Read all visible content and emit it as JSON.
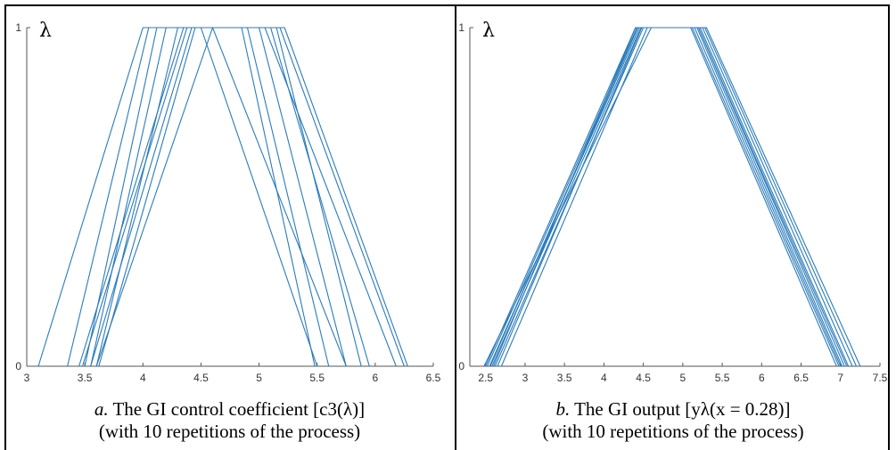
{
  "panels": [
    {
      "caption_letter": "a.",
      "caption_text": "The GI control coefficient",
      "caption_math": "[c3(λ)]",
      "caption_line2": "(with 10 repetitions of the process)"
    },
    {
      "caption_letter": "b.",
      "caption_text": "The GI output",
      "caption_math": "[yλ(x = 0.28)]",
      "caption_line2": "(with 10 repetitions of the process)"
    }
  ],
  "chart_data": [
    {
      "type": "line",
      "ylabel": "λ",
      "xlim": [
        3,
        6.5
      ],
      "ylim": [
        0,
        1
      ],
      "xticks": [
        "3",
        "3.5",
        "4",
        "4.5",
        "5",
        "5.5",
        "6",
        "6.5"
      ],
      "yticks": [
        "0",
        "1"
      ],
      "color": "#2b7bba",
      "grid": false,
      "series": [
        {
          "x": [
            3.1,
            4.0,
            4.5,
            5.5
          ],
          "y": [
            0,
            1,
            1,
            0
          ]
        },
        {
          "x": [
            3.35,
            4.05,
            4.6,
            5.75
          ],
          "y": [
            0,
            1,
            1,
            0
          ]
        },
        {
          "x": [
            3.5,
            4.12,
            4.85,
            5.48
          ],
          "y": [
            0,
            1,
            1,
            0
          ]
        },
        {
          "x": [
            3.55,
            4.2,
            4.9,
            5.6
          ],
          "y": [
            0,
            1,
            1,
            0
          ]
        },
        {
          "x": [
            3.6,
            4.3,
            5.0,
            5.75
          ],
          "y": [
            0,
            1,
            1,
            0
          ]
        },
        {
          "x": [
            3.48,
            4.38,
            5.05,
            6.18
          ],
          "y": [
            0,
            1,
            1,
            0
          ]
        },
        {
          "x": [
            3.62,
            4.45,
            5.1,
            5.95
          ],
          "y": [
            0,
            1,
            1,
            0
          ]
        },
        {
          "x": [
            3.55,
            4.42,
            5.15,
            5.88
          ],
          "y": [
            0,
            1,
            1,
            0
          ]
        },
        {
          "x": [
            3.45,
            4.35,
            5.18,
            6.25
          ],
          "y": [
            0,
            1,
            1,
            0
          ]
        },
        {
          "x": [
            3.6,
            4.6,
            5.22,
            6.28
          ],
          "y": [
            0,
            1,
            1,
            0
          ]
        }
      ]
    },
    {
      "type": "line",
      "ylabel": "λ",
      "xlim": [
        2.3,
        7.5
      ],
      "ylim": [
        0,
        1
      ],
      "xticks": [
        "2.5",
        "3",
        "3.5",
        "4",
        "4.5",
        "5",
        "5.5",
        "6",
        "6.5",
        "7",
        "7.5"
      ],
      "xtick_values": [
        2.5,
        3,
        3.5,
        4,
        4.5,
        5,
        5.5,
        6,
        6.5,
        7,
        7.5
      ],
      "yticks": [
        "0",
        "1"
      ],
      "color": "#2b7bba",
      "grid": false,
      "series": [
        {
          "x": [
            2.5,
            4.4,
            5.1,
            6.95
          ],
          "y": [
            0,
            1,
            1,
            0
          ]
        },
        {
          "x": [
            2.52,
            4.42,
            5.15,
            7.0
          ],
          "y": [
            0,
            1,
            1,
            0
          ]
        },
        {
          "x": [
            2.55,
            4.45,
            5.18,
            7.02
          ],
          "y": [
            0,
            1,
            1,
            0
          ]
        },
        {
          "x": [
            2.58,
            4.47,
            5.2,
            7.05
          ],
          "y": [
            0,
            1,
            1,
            0
          ]
        },
        {
          "x": [
            2.6,
            4.4,
            5.22,
            7.1
          ],
          "y": [
            0,
            1,
            1,
            0
          ]
        },
        {
          "x": [
            2.62,
            4.5,
            5.25,
            7.15
          ],
          "y": [
            0,
            1,
            1,
            0
          ]
        },
        {
          "x": [
            2.65,
            4.48,
            5.28,
            7.2
          ],
          "y": [
            0,
            1,
            1,
            0
          ]
        },
        {
          "x": [
            2.7,
            4.55,
            5.3,
            7.25
          ],
          "y": [
            0,
            1,
            1,
            0
          ]
        },
        {
          "x": [
            2.48,
            4.6,
            5.2,
            7.08
          ],
          "y": [
            0,
            1,
            1,
            0
          ]
        },
        {
          "x": [
            2.56,
            4.43,
            5.12,
            6.98
          ],
          "y": [
            0,
            1,
            1,
            0
          ]
        }
      ]
    }
  ]
}
